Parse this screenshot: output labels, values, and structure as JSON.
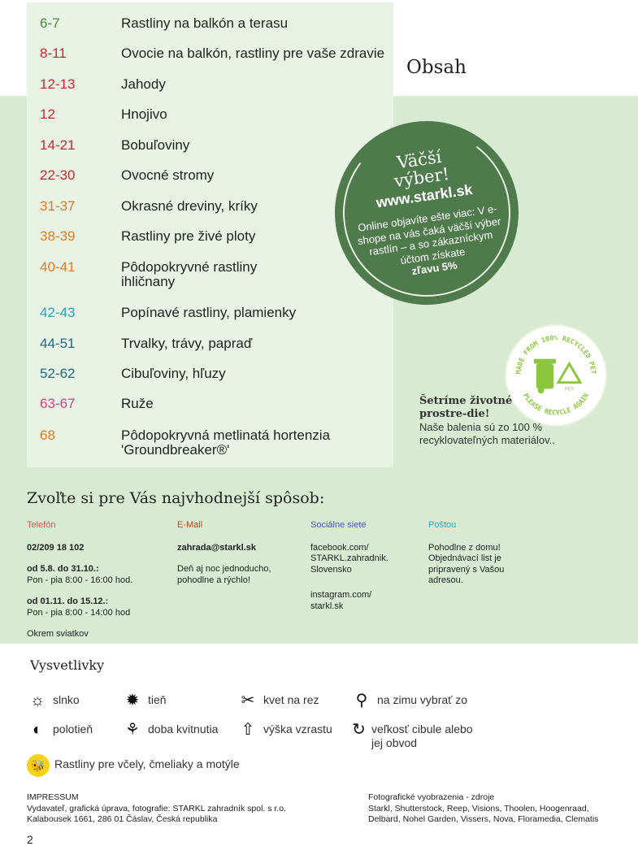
{
  "toc": [
    {
      "pages": "6-7",
      "title": "Rastliny na balkón a terasu",
      "color": "#4e8a3e"
    },
    {
      "pages": "8-11",
      "title": "Ovocie na balkón, rastliny pre vaše zdravie",
      "color": "#c8282d"
    },
    {
      "pages": "12-13",
      "title": "Jahody",
      "color": "#c8282d"
    },
    {
      "pages": "12",
      "title": "Hnojivo",
      "color": "#c8282d"
    },
    {
      "pages": "14-21",
      "title": "Bobuľoviny",
      "color": "#c8282d"
    },
    {
      "pages": "22-30",
      "title": "Ovocné stromy",
      "color": "#c8282d"
    },
    {
      "pages": "31-37",
      "title": "Okrasné dreviny, kríky",
      "color": "#e07b22"
    },
    {
      "pages": "38-39",
      "title": "Rastliny pre živé ploty",
      "color": "#e07b22"
    },
    {
      "pages": "40-41",
      "title": "Pôdopokryvné rastliny ihličnany",
      "color": "#e07b22"
    },
    {
      "pages": "42-43",
      "title": "Popínavé rastliny, plamienky",
      "color": "#2aa0c4"
    },
    {
      "pages": "44-51",
      "title": "Trvalky, trávy, papraď",
      "color": "#1f6a8a"
    },
    {
      "pages": "52-62",
      "title": "Cibuľoviny, hľuzy",
      "color": "#1f6a8a"
    },
    {
      "pages": "63-67",
      "title": "Ruže",
      "color": "#d0447f"
    },
    {
      "pages": "68",
      "title": "Pôdopokryvná metlinatá hortenzia 'Groundbreaker®'",
      "color": "#e07b22"
    }
  ],
  "heading": "Obsah",
  "promo": {
    "line1": "Väčší",
    "line2": "výber!",
    "url": "www.starkl.sk",
    "body": "Online objavíte ešte viac: V e-shope na vás čaká väčší výber rastlín – a so zákazníckym účtom získate",
    "discount": "zľavu 5%",
    "color": "#4f7a4b"
  },
  "badge": {
    "top": "MADE FROM 100% RECYCLED PET",
    "bottom": "PLEASE RECYCLE AGAIN",
    "code": "PET"
  },
  "eco": {
    "title": "Šetríme životné prostre-die!",
    "text": "Naše balenia sú zo 100 % recyklovateľných materiálov.."
  },
  "contact": {
    "heading": "Zvoľte si pre Vás najvhodnejší spôsob:",
    "phone": {
      "label": "Telefón",
      "number": "02/209 18 102",
      "p1_bold": "od 5.8. do 31.10.:",
      "p1": "Pon - pia 8:00 - 16:00 hod.",
      "p2_bold": "od 01.11. do 15.12.:",
      "p2": "Pon - pia 8:00 - 14:00 hod",
      "note": "Okrem sviatkov"
    },
    "email": {
      "label": "E-Mail",
      "address": "zahrada@starkl.sk",
      "text": "Deň aj noc jednoducho, pohodlne a rýchlo!"
    },
    "social": {
      "label": "Sociálne siete",
      "facebook": "facebook.com/ STARKL.zahradnik. Slovensko",
      "instagram": "instagram.com/ starkl.sk"
    },
    "post": {
      "label": "Poštou",
      "text": "Pohodlne z domu! Objednávací list je pripravený s Vašou adresou."
    }
  },
  "legend": {
    "heading": "Vysvetlivky",
    "items": [
      {
        "icon": "sun-icon",
        "label": "slnko"
      },
      {
        "icon": "shade-icon",
        "label": "tieň"
      },
      {
        "icon": "scissors-icon",
        "label": "kvet na rez"
      },
      {
        "icon": "shovel-icon",
        "label": "na zimu vybrať zo"
      },
      {
        "icon": "half-shade-icon",
        "label": "polotieň"
      },
      {
        "icon": "tulip-icon",
        "label": "doba kvitnutia"
      },
      {
        "icon": "arrow-up-icon",
        "label": "výška vzrastu"
      },
      {
        "icon": "bulb-size-icon",
        "label": "veľkosť cibule alebo jej obvod"
      },
      {
        "icon": "bee-icon",
        "label": "Rastliny pre včely, čmeliaky a motýle"
      }
    ]
  },
  "impressum": {
    "title": "IMPRESSUM",
    "line1": "Vydavateľ, grafická úprava, fotografie: STARKL zahradník spol. s r.o.",
    "line2": "Kalabousek 1661, 286 01 Čáslav, Česká republika"
  },
  "photos": {
    "title": "Fotografické vyobrazenia - zdroje",
    "line1": "Starkl, Shutterstock, Reep, Visions, Thoolen, Hoogenraad,",
    "line2": "Delbard, Nohel Garden, Vissers, Nova, Floramedia, Clematis"
  },
  "page_number": "2"
}
